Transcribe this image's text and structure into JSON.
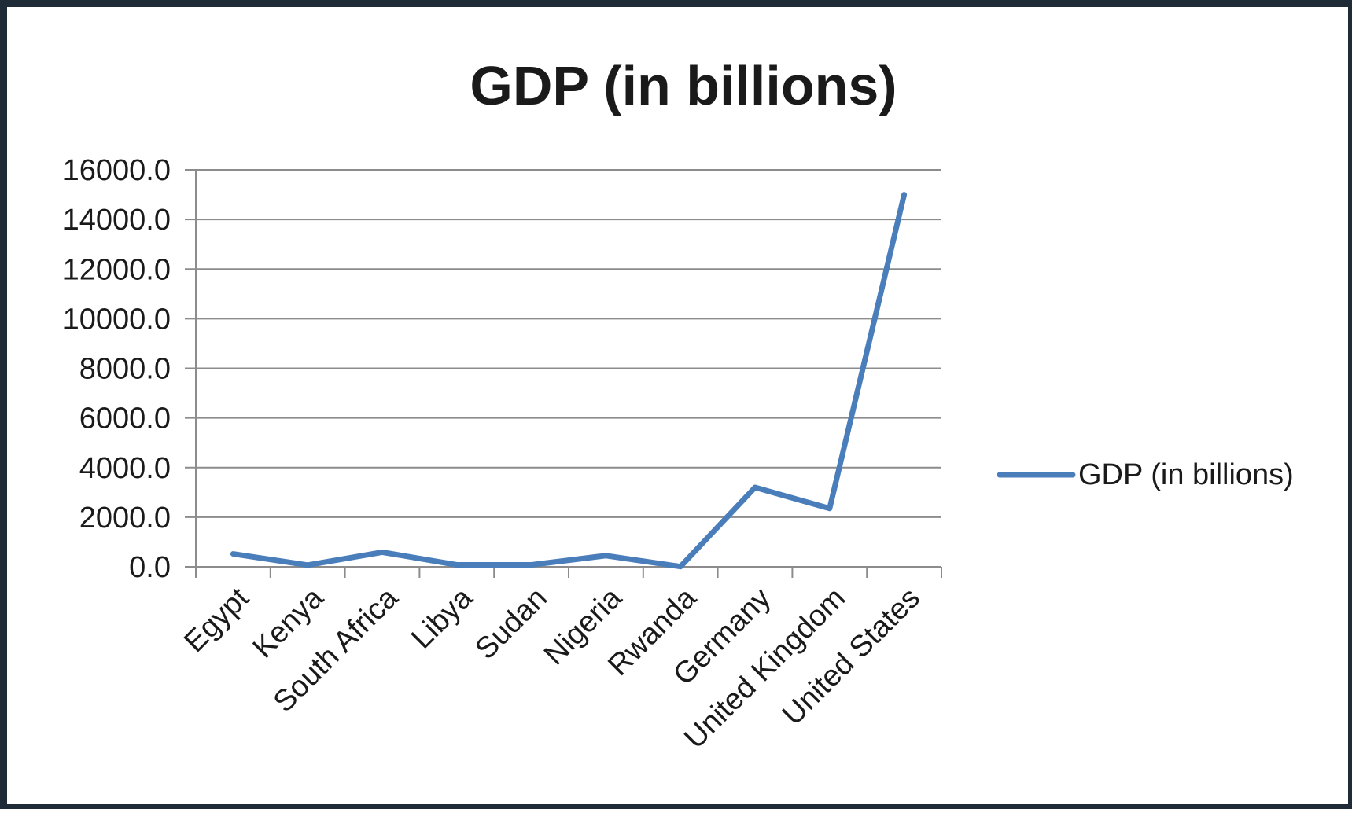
{
  "chart_data": {
    "type": "line",
    "title": "GDP (in billions)",
    "xlabel": "",
    "ylabel": "",
    "categories": [
      "Egypt",
      "Kenya",
      "South Africa",
      "Libya",
      "Sudan",
      "Nigeria",
      "Rwanda",
      "Germany",
      "United Kingdom",
      "United States"
    ],
    "series": [
      {
        "name": "GDP (in billions)",
        "values": [
          520,
          70,
          590,
          80,
          80,
          450,
          10,
          3200,
          2350,
          15000
        ]
      }
    ],
    "ylim": [
      0,
      16000
    ],
    "yticks": [
      0,
      2000,
      4000,
      6000,
      8000,
      10000,
      12000,
      14000,
      16000
    ],
    "ytick_labels": [
      "0.0",
      "2000.0",
      "4000.0",
      "6000.0",
      "8000.0",
      "10000.0",
      "12000.0",
      "14000.0",
      "16000.0"
    ],
    "grid": true,
    "legend_position": "right",
    "colors": {
      "series": "#4a7ebb",
      "grid": "#8c8c8c",
      "axis": "#8c8c8c"
    }
  }
}
